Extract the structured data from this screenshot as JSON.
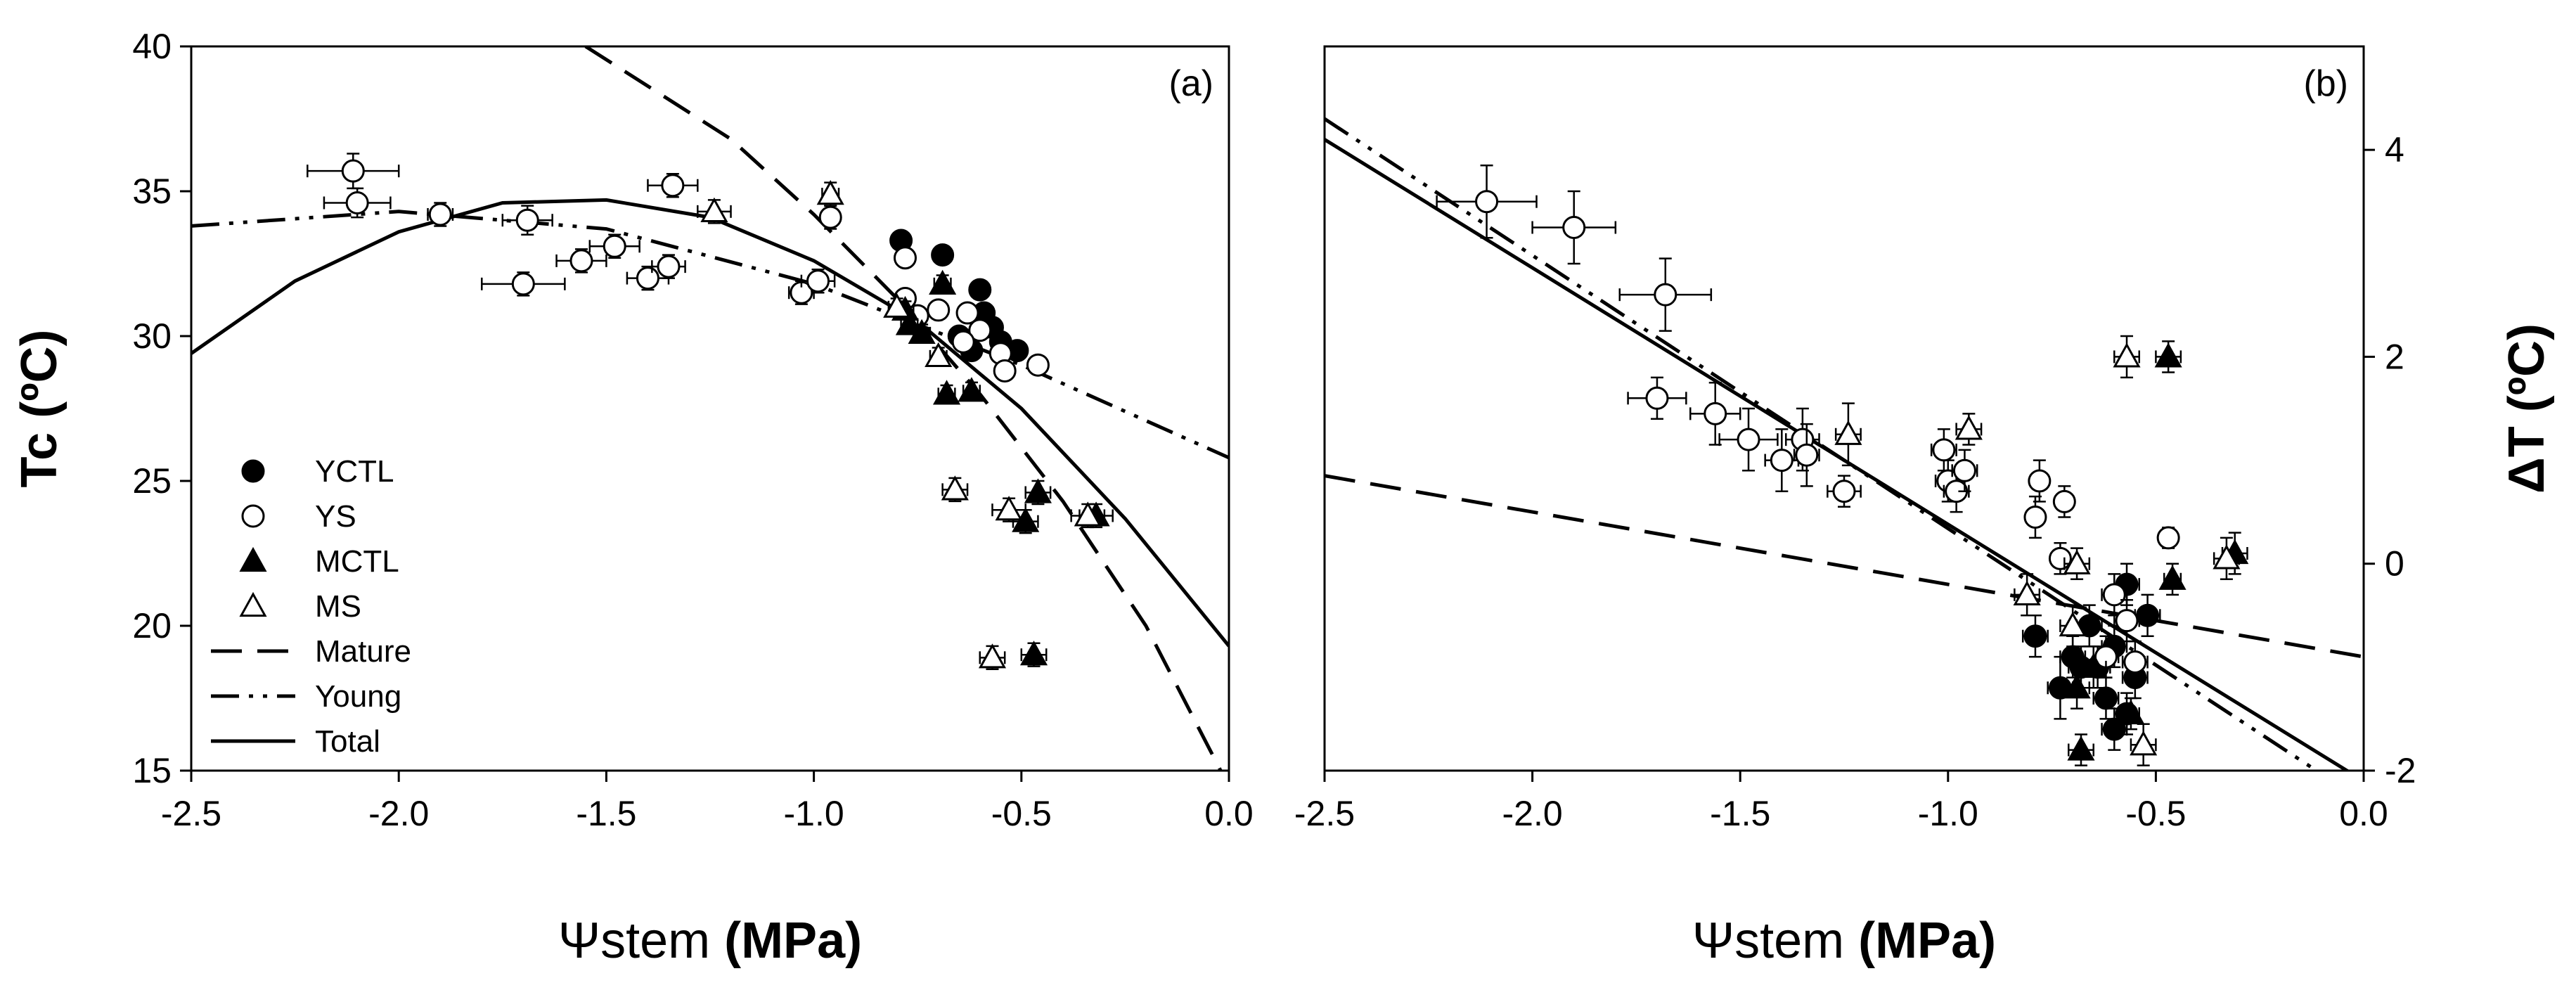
{
  "chart_data": [
    {
      "panel": "(a)",
      "type": "scatter",
      "xlabel_symbol": "Ψ",
      "xlabel_text": "stem ",
      "xlabel_unit": "(MPa)",
      "ylabel": "Tc (ºC)",
      "xlim": [
        -2.5,
        0.0
      ],
      "ylim": [
        15,
        40
      ],
      "xticks": [
        "-2.5",
        "-2.0",
        "-1.5",
        "-1.0",
        "-0.5",
        "0.0"
      ],
      "yticks": [
        "15",
        "20",
        "25",
        "30",
        "35",
        "40"
      ],
      "legend": {
        "position": "bottom-left",
        "entries": [
          {
            "label": "YCTL",
            "kind": "marker",
            "marker": "circle-filled"
          },
          {
            "label": "YS",
            "kind": "marker",
            "marker": "circle-open"
          },
          {
            "label": "MCTL",
            "kind": "marker",
            "marker": "triangle-filled"
          },
          {
            "label": "MS",
            "kind": "marker",
            "marker": "triangle-open"
          },
          {
            "label": "Mature",
            "kind": "line",
            "dash": "dashed"
          },
          {
            "label": "Young",
            "kind": "line",
            "dash": "dashdotdot"
          },
          {
            "label": "Total",
            "kind": "line",
            "dash": "solid"
          }
        ]
      },
      "series": [
        {
          "name": "YCTL",
          "marker": "circle-filled",
          "points": [
            {
              "x": -0.79,
              "y": 33.3,
              "xerr": 0.02,
              "yerr": 0.3
            },
            {
              "x": -0.69,
              "y": 32.8,
              "xerr": 0.02,
              "yerr": 0.3
            },
            {
              "x": -0.6,
              "y": 31.6,
              "xerr": 0.02,
              "yerr": 0.3
            },
            {
              "x": -0.59,
              "y": 30.8,
              "xerr": 0.02,
              "yerr": 0.3
            },
            {
              "x": -0.57,
              "y": 30.3,
              "xerr": 0.02,
              "yerr": 0.3
            },
            {
              "x": -0.55,
              "y": 29.8,
              "xerr": 0.02,
              "yerr": 0.3
            },
            {
              "x": -0.51,
              "y": 29.5,
              "xerr": 0.02,
              "yerr": 0.3
            },
            {
              "x": -0.62,
              "y": 29.5,
              "xerr": 0.02,
              "yerr": 0.3
            },
            {
              "x": -0.65,
              "y": 30.0,
              "xerr": 0.02,
              "yerr": 0.3
            }
          ]
        },
        {
          "name": "YS",
          "marker": "circle-open",
          "points": [
            {
              "x": -2.11,
              "y": 35.7,
              "xerr": 0.11,
              "yerr": 0.6
            },
            {
              "x": -2.1,
              "y": 34.6,
              "xerr": 0.08,
              "yerr": 0.5
            },
            {
              "x": -1.9,
              "y": 34.2,
              "xerr": 0.03,
              "yerr": 0.4
            },
            {
              "x": -1.69,
              "y": 34.0,
              "xerr": 0.06,
              "yerr": 0.5
            },
            {
              "x": -1.7,
              "y": 31.8,
              "xerr": 0.1,
              "yerr": 0.4
            },
            {
              "x": -1.56,
              "y": 32.6,
              "xerr": 0.06,
              "yerr": 0.4
            },
            {
              "x": -1.48,
              "y": 33.1,
              "xerr": 0.06,
              "yerr": 0.4
            },
            {
              "x": -1.4,
              "y": 32.0,
              "xerr": 0.05,
              "yerr": 0.4
            },
            {
              "x": -1.35,
              "y": 32.4,
              "xerr": 0.04,
              "yerr": 0.4
            },
            {
              "x": -1.34,
              "y": 35.2,
              "xerr": 0.06,
              "yerr": 0.4
            },
            {
              "x": -1.03,
              "y": 31.5,
              "xerr": 0.03,
              "yerr": 0.4
            },
            {
              "x": -0.99,
              "y": 31.9,
              "xerr": 0.04,
              "yerr": 0.4
            },
            {
              "x": -0.96,
              "y": 34.1,
              "xerr": 0.02,
              "yerr": 0.4
            },
            {
              "x": -0.78,
              "y": 32.7,
              "xerr": 0.02,
              "yerr": 0.3
            },
            {
              "x": -0.78,
              "y": 31.3,
              "xerr": 0.02,
              "yerr": 0.3
            },
            {
              "x": -0.75,
              "y": 30.7,
              "xerr": 0.02,
              "yerr": 0.3
            },
            {
              "x": -0.7,
              "y": 30.9,
              "xerr": 0.02,
              "yerr": 0.3
            },
            {
              "x": -0.63,
              "y": 30.8,
              "xerr": 0.02,
              "yerr": 0.3
            },
            {
              "x": -0.6,
              "y": 30.2,
              "xerr": 0.02,
              "yerr": 0.3
            },
            {
              "x": -0.64,
              "y": 29.8,
              "xerr": 0.02,
              "yerr": 0.3
            },
            {
              "x": -0.55,
              "y": 29.4,
              "xerr": 0.02,
              "yerr": 0.3
            },
            {
              "x": -0.54,
              "y": 28.8,
              "xerr": 0.02,
              "yerr": 0.3
            },
            {
              "x": -0.46,
              "y": 29.0,
              "xerr": 0.02,
              "yerr": 0.3
            }
          ]
        },
        {
          "name": "MCTL",
          "marker": "triangle-filled",
          "points": [
            {
              "x": -0.69,
              "y": 31.8,
              "xerr": 0.02,
              "yerr": 0.3
            },
            {
              "x": -0.78,
              "y": 30.9,
              "xerr": 0.02,
              "yerr": 0.3
            },
            {
              "x": -0.77,
              "y": 30.4,
              "xerr": 0.02,
              "yerr": 0.3
            },
            {
              "x": -0.74,
              "y": 30.1,
              "xerr": 0.02,
              "yerr": 0.3
            },
            {
              "x": -0.68,
              "y": 28.0,
              "xerr": 0.02,
              "yerr": 0.3
            },
            {
              "x": -0.62,
              "y": 28.1,
              "xerr": 0.02,
              "yerr": 0.3
            },
            {
              "x": -0.46,
              "y": 24.6,
              "xerr": 0.03,
              "yerr": 0.4
            },
            {
              "x": -0.49,
              "y": 23.6,
              "xerr": 0.03,
              "yerr": 0.4
            },
            {
              "x": -0.32,
              "y": 23.8,
              "xerr": 0.04,
              "yerr": 0.4
            },
            {
              "x": -0.47,
              "y": 19.0,
              "xerr": 0.03,
              "yerr": 0.4
            }
          ]
        },
        {
          "name": "MS",
          "marker": "triangle-open",
          "points": [
            {
              "x": -0.96,
              "y": 34.9,
              "xerr": 0.02,
              "yerr": 0.4
            },
            {
              "x": -1.24,
              "y": 34.3,
              "xerr": 0.04,
              "yerr": 0.4
            },
            {
              "x": -0.8,
              "y": 31.0,
              "xerr": 0.02,
              "yerr": 0.3
            },
            {
              "x": -0.7,
              "y": 29.3,
              "xerr": 0.02,
              "yerr": 0.3
            },
            {
              "x": -0.66,
              "y": 24.7,
              "xerr": 0.03,
              "yerr": 0.4
            },
            {
              "x": -0.53,
              "y": 24.0,
              "xerr": 0.04,
              "yerr": 0.4
            },
            {
              "x": -0.34,
              "y": 23.8,
              "xerr": 0.04,
              "yerr": 0.4
            },
            {
              "x": -0.57,
              "y": 18.9,
              "xerr": 0.03,
              "yerr": 0.4
            }
          ]
        }
      ],
      "fit_lines": [
        {
          "name": "Mature",
          "dash": "dashed",
          "x": [
            -1.55,
            -1.2,
            -1.0,
            -0.8,
            -0.6,
            -0.4,
            -0.2,
            -0.02
          ],
          "y": [
            40.0,
            36.8,
            34.2,
            31.3,
            28.0,
            24.3,
            20.0,
            15.0
          ]
        },
        {
          "name": "Young",
          "dash": "dashdotdot",
          "x": [
            -2.5,
            -2.0,
            -1.5,
            -1.0,
            -0.5,
            0.0
          ],
          "y": [
            33.8,
            34.3,
            33.7,
            31.8,
            29.0,
            25.8
          ]
        },
        {
          "name": "Total",
          "dash": "solid",
          "x": [
            -2.5,
            -2.25,
            -2.0,
            -1.75,
            -1.5,
            -1.25,
            -1.0,
            -0.75,
            -0.5,
            -0.25,
            0.0
          ],
          "y": [
            29.4,
            31.9,
            33.6,
            34.6,
            34.7,
            34.1,
            32.6,
            30.5,
            27.5,
            23.7,
            19.3
          ]
        }
      ]
    },
    {
      "panel": "(b)",
      "type": "scatter",
      "xlabel_symbol": "Ψ",
      "xlabel_text": "stem ",
      "xlabel_unit": "(MPa)",
      "ylabel": "ΔT (ºC)",
      "yaxis_side": "right",
      "xlim": [
        -2.5,
        0.0
      ],
      "ylim": [
        -2,
        5
      ],
      "xticks": [
        "-2.5",
        "-2.0",
        "-1.5",
        "-1.0",
        "-0.5",
        "0.0"
      ],
      "yticks": [
        "-2",
        "0",
        "2",
        "4"
      ],
      "series": [
        {
          "name": "YCTL",
          "marker": "circle-filled",
          "points": [
            {
              "x": -0.79,
              "y": -0.7,
              "xerr": 0.03,
              "yerr": 0.2
            },
            {
              "x": -0.73,
              "y": -1.2,
              "xerr": 0.03,
              "yerr": 0.3
            },
            {
              "x": -0.7,
              "y": -0.9,
              "xerr": 0.03,
              "yerr": 0.2
            },
            {
              "x": -0.66,
              "y": -0.6,
              "xerr": 0.03,
              "yerr": 0.2
            },
            {
              "x": -0.64,
              "y": -1.0,
              "xerr": 0.03,
              "yerr": 0.2
            },
            {
              "x": -0.62,
              "y": -1.3,
              "xerr": 0.03,
              "yerr": 0.2
            },
            {
              "x": -0.6,
              "y": -0.8,
              "xerr": 0.03,
              "yerr": 0.2
            },
            {
              "x": -0.57,
              "y": -0.2,
              "xerr": 0.03,
              "yerr": 0.2
            },
            {
              "x": -0.55,
              "y": -1.1,
              "xerr": 0.03,
              "yerr": 0.2
            },
            {
              "x": -0.52,
              "y": -0.5,
              "xerr": 0.03,
              "yerr": 0.2
            },
            {
              "x": -0.6,
              "y": -1.6,
              "xerr": 0.03,
              "yerr": 0.2
            },
            {
              "x": -0.57,
              "y": -1.45,
              "xerr": 0.03,
              "yerr": 0.2
            },
            {
              "x": -0.68,
              "y": -1.0,
              "xerr": 0.03,
              "yerr": 0.2
            }
          ]
        },
        {
          "name": "YS",
          "marker": "circle-open",
          "points": [
            {
              "x": -2.11,
              "y": 3.5,
              "xerr": 0.12,
              "yerr": 0.35
            },
            {
              "x": -1.9,
              "y": 3.25,
              "xerr": 0.1,
              "yerr": 0.35
            },
            {
              "x": -1.68,
              "y": 2.6,
              "xerr": 0.11,
              "yerr": 0.35
            },
            {
              "x": -1.7,
              "y": 1.6,
              "xerr": 0.07,
              "yerr": 0.2
            },
            {
              "x": -1.56,
              "y": 1.45,
              "xerr": 0.06,
              "yerr": 0.3
            },
            {
              "x": -1.48,
              "y": 1.2,
              "xerr": 0.07,
              "yerr": 0.3
            },
            {
              "x": -1.4,
              "y": 1.0,
              "xerr": 0.04,
              "yerr": 0.3
            },
            {
              "x": -1.35,
              "y": 1.2,
              "xerr": 0.04,
              "yerr": 0.3
            },
            {
              "x": -1.34,
              "y": 1.05,
              "xerr": 0.03,
              "yerr": 0.3
            },
            {
              "x": -1.25,
              "y": 0.7,
              "xerr": 0.04,
              "yerr": 0.15
            },
            {
              "x": -1.01,
              "y": 1.1,
              "xerr": 0.03,
              "yerr": 0.2
            },
            {
              "x": -1.0,
              "y": 0.8,
              "xerr": 0.03,
              "yerr": 0.2
            },
            {
              "x": -0.98,
              "y": 0.7,
              "xerr": 0.03,
              "yerr": 0.2
            },
            {
              "x": -0.96,
              "y": 0.9,
              "xerr": 0.03,
              "yerr": 0.2
            },
            {
              "x": -0.78,
              "y": 0.8,
              "xerr": 0.02,
              "yerr": 0.2
            },
            {
              "x": -0.79,
              "y": 0.45,
              "xerr": 0.02,
              "yerr": 0.2
            },
            {
              "x": -0.72,
              "y": 0.6,
              "xerr": 0.02,
              "yerr": 0.15
            },
            {
              "x": -0.73,
              "y": 0.05,
              "xerr": 0.02,
              "yerr": 0.15
            },
            {
              "x": -0.62,
              "y": -0.9,
              "xerr": 0.03,
              "yerr": 0.2
            },
            {
              "x": -0.6,
              "y": -0.3,
              "xerr": 0.03,
              "yerr": 0.2
            },
            {
              "x": -0.57,
              "y": -0.55,
              "xerr": 0.03,
              "yerr": 0.2
            },
            {
              "x": -0.55,
              "y": -0.95,
              "xerr": 0.03,
              "yerr": 0.2
            },
            {
              "x": -0.47,
              "y": 0.25,
              "xerr": 0.02,
              "yerr": 0.1
            }
          ]
        },
        {
          "name": "MCTL",
          "marker": "triangle-filled",
          "points": [
            {
              "x": -0.68,
              "y": -1.8,
              "xerr": 0.03,
              "yerr": 0.15
            },
            {
              "x": -0.69,
              "y": -1.2,
              "xerr": 0.03,
              "yerr": 0.2
            },
            {
              "x": -0.65,
              "y": -1.0,
              "xerr": 0.03,
              "yerr": 0.2
            },
            {
              "x": -0.47,
              "y": 2.0,
              "xerr": 0.03,
              "yerr": 0.15
            },
            {
              "x": -0.46,
              "y": -0.15,
              "xerr": 0.02,
              "yerr": 0.15
            },
            {
              "x": -0.31,
              "y": 0.1,
              "xerr": 0.03,
              "yerr": 0.2
            },
            {
              "x": -0.56,
              "y": -1.45,
              "xerr": 0.02,
              "yerr": 0.15
            }
          ]
        },
        {
          "name": "MS",
          "marker": "triangle-open",
          "points": [
            {
              "x": -0.57,
              "y": 2.0,
              "xerr": 0.03,
              "yerr": 0.2
            },
            {
              "x": -1.24,
              "y": 1.25,
              "xerr": 0.03,
              "yerr": 0.3
            },
            {
              "x": -0.95,
              "y": 1.3,
              "xerr": 0.03,
              "yerr": 0.15
            },
            {
              "x": -0.81,
              "y": -0.3,
              "xerr": 0.03,
              "yerr": 0.2
            },
            {
              "x": -0.69,
              "y": 0.0,
              "xerr": 0.03,
              "yerr": 0.15
            },
            {
              "x": -0.7,
              "y": -0.6,
              "xerr": 0.03,
              "yerr": 0.2
            },
            {
              "x": -0.33,
              "y": 0.05,
              "xerr": 0.03,
              "yerr": 0.2
            },
            {
              "x": -0.53,
              "y": -1.75,
              "xerr": 0.03,
              "yerr": 0.2
            }
          ]
        }
      ],
      "fit_lines": [
        {
          "name": "Mature",
          "dash": "dashed",
          "x": [
            -2.5,
            0.0
          ],
          "y": [
            0.85,
            -0.9
          ]
        },
        {
          "name": "Young",
          "dash": "dashdotdot",
          "x": [
            -2.5,
            0.0
          ],
          "y": [
            4.3,
            -2.3
          ]
        },
        {
          "name": "Total",
          "dash": "solid",
          "x": [
            -2.5,
            0.0
          ],
          "y": [
            4.1,
            -2.1
          ]
        }
      ]
    }
  ]
}
